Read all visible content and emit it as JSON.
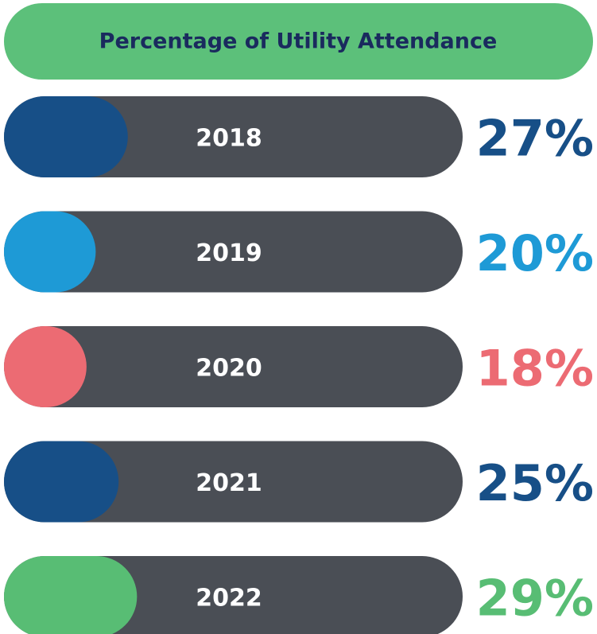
{
  "chart_data": {
    "type": "bar",
    "title": "Percentage of Utility Attendance",
    "categories": [
      "2018",
      "2019",
      "2020",
      "2021",
      "2022"
    ],
    "values": [
      27,
      20,
      18,
      25,
      29
    ],
    "value_labels": [
      "27%",
      "20%",
      "18%",
      "25%",
      "29%"
    ],
    "colors": [
      "#174f87",
      "#1e9ad6",
      "#ec6b73",
      "#174f87",
      "#58bd74"
    ],
    "xlim": [
      0,
      100
    ]
  }
}
